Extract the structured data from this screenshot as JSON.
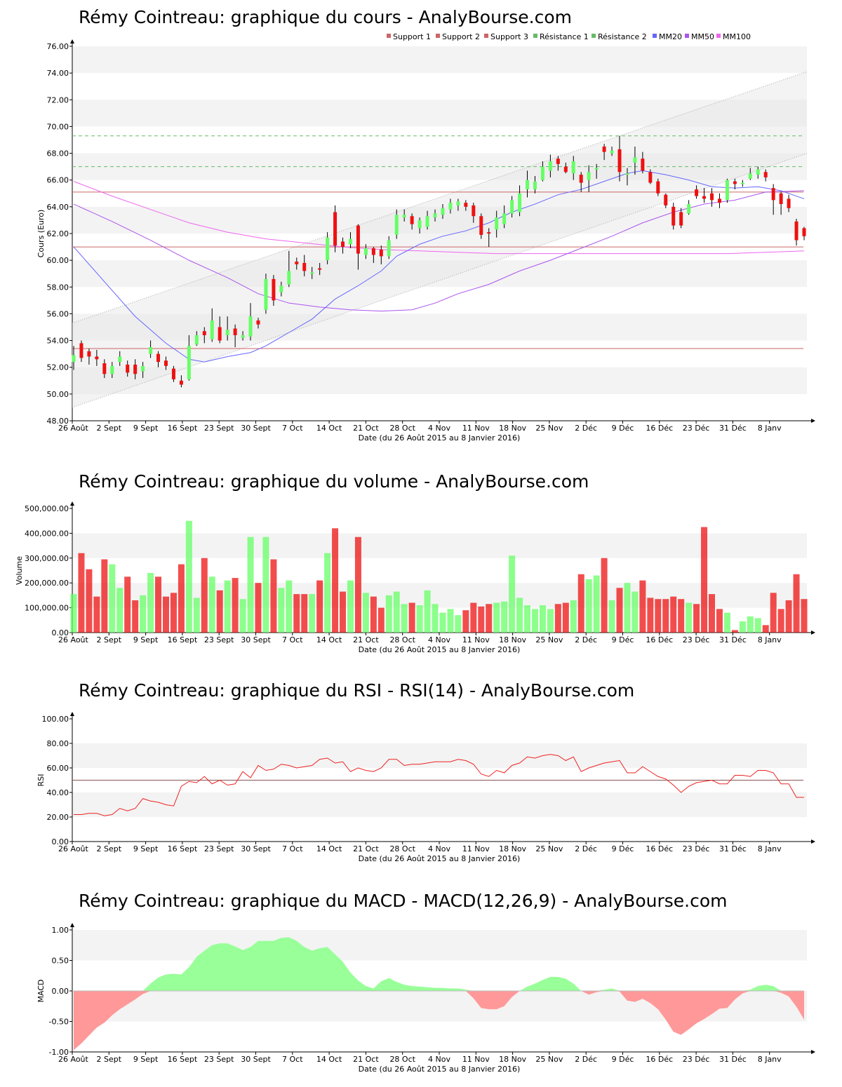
{
  "colors": {
    "up": "#66ff66",
    "down": "#ee1111",
    "support": "#cc6666",
    "resistance": "#66bb66",
    "mm20": "#6666ff",
    "mm50": "#aa55ee",
    "mm100": "#ee66ee",
    "rsi_line": "#ee2222",
    "macd_pos": "#99ff99",
    "macd_neg": "#ff9999",
    "band_fill": "#e8e8e8",
    "grid_alt": "#f3f3f3"
  },
  "x_axis": {
    "labels": [
      "26 Août",
      "2 Sept",
      "9 Sept",
      "16 Sept",
      "23 Sept",
      "30 Sept",
      "7 Oct",
      "14 Oct",
      "21 Oct",
      "28 Oct",
      "4 Nov",
      "11 Nov",
      "18 Nov",
      "25 Nov",
      "2 Déc",
      "9 Déc",
      "16 Déc",
      "23 Déc",
      "31 Déc",
      "8 Janv"
    ],
    "title": "Date (du 26 Août 2015 au 8 Janvier 2016)"
  },
  "chart_data": [
    {
      "type": "candlestick",
      "title": "Rémy Cointreau: graphique du cours - AnalyBourse.com",
      "ylabel": "Cours (Euro)",
      "ylim": [
        48,
        76
      ],
      "yticks": [
        "48.00",
        "50.00",
        "52.00",
        "54.00",
        "56.00",
        "58.00",
        "60.00",
        "62.00",
        "64.00",
        "66.00",
        "68.00",
        "70.00",
        "72.00",
        "74.00",
        "76.00"
      ],
      "legend": [
        "Support 1",
        "Support 2",
        "Support 3",
        "Résistance 1",
        "Résistance 2",
        "MM20",
        "MM50",
        "MM100"
      ],
      "legend_placement": "top-right",
      "supports": [
        65.1,
        61.0,
        53.4
      ],
      "resistances": [
        69.3,
        67.0
      ],
      "trend_channel": {
        "upper": [
          55.3,
          74.1
        ],
        "lower": [
          49.0,
          68.0
        ]
      },
      "candles": [
        [
          52.4,
          52.9,
          53.6,
          51.8
        ],
        [
          53.8,
          52.7,
          54.0,
          52.4
        ],
        [
          53.2,
          52.8,
          53.4,
          52.2
        ],
        [
          52.8,
          52.6,
          53.3,
          52.1
        ],
        [
          52.3,
          51.5,
          52.6,
          51.2
        ],
        [
          51.5,
          52.1,
          52.4,
          51.2
        ],
        [
          52.4,
          52.8,
          53.2,
          52.1
        ],
        [
          52.2,
          51.6,
          52.5,
          51.3
        ],
        [
          52.2,
          51.5,
          52.6,
          51.1
        ],
        [
          51.7,
          52.1,
          52.4,
          51.2
        ],
        [
          53.0,
          53.5,
          54.0,
          52.7
        ],
        [
          53.0,
          52.4,
          53.2,
          52.0
        ],
        [
          52.5,
          52.1,
          52.8,
          51.8
        ],
        [
          51.9,
          51.1,
          52.1,
          50.9
        ],
        [
          51.0,
          50.7,
          51.4,
          50.5
        ],
        [
          51.1,
          53.6,
          54.4,
          51.0
        ],
        [
          53.7,
          54.4,
          54.7,
          53.6
        ],
        [
          54.7,
          54.4,
          55.0,
          53.8
        ],
        [
          54.1,
          55.5,
          56.4,
          53.9
        ],
        [
          55.0,
          54.0,
          55.8,
          53.8
        ],
        [
          54.4,
          54.8,
          55.8,
          54.0
        ],
        [
          54.9,
          54.4,
          55.2,
          53.5
        ],
        [
          54.2,
          54.4,
          54.7,
          54.0
        ],
        [
          54.3,
          55.8,
          56.8,
          54.0
        ],
        [
          55.5,
          55.2,
          55.7,
          54.9
        ],
        [
          56.3,
          58.6,
          59.0,
          56.0
        ],
        [
          58.6,
          57.0,
          58.9,
          56.6
        ],
        [
          57.6,
          58.1,
          58.4,
          57.3
        ],
        [
          58.2,
          59.2,
          60.7,
          58.0
        ],
        [
          59.9,
          59.7,
          60.2,
          59.3
        ],
        [
          59.8,
          59.2,
          60.4,
          58.8
        ],
        [
          59.0,
          59.1,
          59.5,
          58.6
        ],
        [
          59.4,
          59.3,
          59.8,
          58.9
        ],
        [
          60.0,
          61.7,
          62.1,
          59.7
        ],
        [
          63.6,
          61.1,
          64.1,
          60.6
        ],
        [
          61.4,
          61.0,
          61.7,
          60.5
        ],
        [
          61.2,
          61.6,
          62.1,
          60.9
        ],
        [
          62.6,
          60.5,
          62.7,
          59.3
        ],
        [
          60.4,
          60.9,
          61.2,
          60.1
        ],
        [
          60.9,
          60.4,
          61.0,
          59.8
        ],
        [
          60.8,
          60.3,
          61.1,
          59.7
        ],
        [
          60.3,
          61.5,
          61.8,
          60.1
        ],
        [
          61.9,
          63.4,
          63.8,
          61.6
        ],
        [
          63.2,
          63.4,
          63.8,
          62.9
        ],
        [
          63.3,
          62.7,
          63.5,
          62.3
        ],
        [
          62.4,
          63.0,
          63.2,
          62.0
        ],
        [
          62.5,
          63.3,
          63.7,
          62.3
        ],
        [
          63.2,
          63.5,
          63.8,
          62.9
        ],
        [
          63.4,
          63.9,
          64.2,
          63.1
        ],
        [
          63.8,
          64.3,
          64.6,
          63.5
        ],
        [
          64.1,
          64.4,
          64.6,
          63.7
        ],
        [
          64.3,
          64.0,
          64.5,
          63.7
        ],
        [
          64.1,
          63.3,
          64.3,
          62.8
        ],
        [
          63.3,
          61.9,
          63.5,
          61.6
        ],
        [
          62.1,
          62.0,
          62.4,
          61.0
        ],
        [
          62.3,
          63.2,
          63.7,
          61.7
        ],
        [
          62.7,
          63.5,
          64.1,
          62.4
        ],
        [
          63.5,
          64.5,
          64.8,
          63.2
        ],
        [
          63.6,
          65.0,
          65.6,
          63.3
        ],
        [
          65.3,
          66.0,
          66.7,
          64.7
        ],
        [
          65.3,
          65.9,
          66.3,
          65.0
        ],
        [
          66.0,
          67.0,
          67.4,
          65.9
        ],
        [
          66.7,
          67.4,
          67.9,
          66.2
        ],
        [
          67.6,
          67.2,
          67.8,
          66.7
        ],
        [
          67.0,
          66.6,
          67.3,
          66.5
        ],
        [
          66.5,
          67.4,
          67.8,
          66.0
        ],
        [
          66.4,
          65.8,
          66.6,
          65.1
        ],
        [
          66.0,
          66.6,
          67.1,
          65.1
        ],
        [
          66.8,
          66.9,
          67.2,
          66.1
        ],
        [
          68.5,
          68.1,
          68.7,
          67.5
        ],
        [
          68.0,
          68.2,
          68.5,
          67.8
        ],
        [
          68.3,
          66.6,
          69.3,
          65.9
        ],
        [
          66.4,
          66.5,
          66.9,
          65.6
        ],
        [
          67.3,
          67.7,
          68.5,
          66.4
        ],
        [
          67.6,
          66.7,
          68.1,
          66.5
        ],
        [
          66.6,
          65.8,
          66.8,
          65.7
        ],
        [
          65.9,
          65.0,
          66.1,
          64.8
        ],
        [
          64.9,
          64.1,
          65.0,
          63.9
        ],
        [
          64.0,
          62.6,
          64.3,
          62.3
        ],
        [
          63.6,
          62.6,
          63.9,
          62.4
        ],
        [
          63.5,
          64.2,
          64.5,
          63.4
        ],
        [
          65.3,
          64.8,
          65.6,
          64.6
        ],
        [
          64.8,
          64.6,
          65.4,
          64.3
        ],
        [
          65.0,
          64.5,
          65.4,
          64.0
        ],
        [
          64.6,
          64.3,
          65.0,
          63.9
        ],
        [
          64.5,
          66.0,
          66.1,
          64.3
        ],
        [
          65.9,
          65.7,
          66.1,
          65.3
        ],
        [
          65.8,
          65.8,
          66.0,
          65.5
        ],
        [
          66.1,
          66.5,
          66.9,
          66.0
        ],
        [
          66.4,
          66.8,
          67.0,
          66.1
        ],
        [
          66.6,
          66.2,
          66.8,
          65.9
        ],
        [
          65.4,
          64.5,
          65.7,
          63.4
        ],
        [
          65.0,
          64.2,
          65.1,
          63.4
        ],
        [
          64.6,
          63.9,
          64.9,
          63.6
        ],
        [
          62.9,
          61.5,
          63.1,
          61.1
        ],
        [
          62.4,
          61.8,
          62.5,
          61.5
        ]
      ],
      "mm20": [
        [
          0,
          61.0
        ],
        [
          4,
          58.4
        ],
        [
          8,
          55.8
        ],
        [
          12,
          53.8
        ],
        [
          15,
          52.6
        ],
        [
          17,
          52.4
        ],
        [
          20,
          52.8
        ],
        [
          23,
          53.1
        ],
        [
          25,
          53.6
        ],
        [
          28,
          54.6
        ],
        [
          31,
          55.6
        ],
        [
          34,
          57.1
        ],
        [
          37,
          58.1
        ],
        [
          40,
          59.2
        ],
        [
          42,
          60.3
        ],
        [
          45,
          61.2
        ],
        [
          48,
          61.8
        ],
        [
          51,
          62.2
        ],
        [
          54,
          62.8
        ],
        [
          57,
          63.6
        ],
        [
          60,
          64.2
        ],
        [
          63,
          64.9
        ],
        [
          66,
          65.3
        ],
        [
          69,
          65.9
        ],
        [
          72,
          66.5
        ],
        [
          74,
          66.7
        ],
        [
          77,
          66.4
        ],
        [
          80,
          66.0
        ],
        [
          83,
          65.5
        ],
        [
          86,
          65.4
        ],
        [
          89,
          65.5
        ],
        [
          92,
          65.2
        ],
        [
          95,
          64.6
        ]
      ],
      "mm50": [
        [
          0,
          64.2
        ],
        [
          5,
          62.9
        ],
        [
          10,
          61.5
        ],
        [
          15,
          60.0
        ],
        [
          20,
          58.7
        ],
        [
          24,
          57.5
        ],
        [
          28,
          56.8
        ],
        [
          32,
          56.5
        ],
        [
          36,
          56.3
        ],
        [
          40,
          56.2
        ],
        [
          44,
          56.3
        ],
        [
          47,
          56.8
        ],
        [
          50,
          57.5
        ],
        [
          54,
          58.2
        ],
        [
          58,
          59.2
        ],
        [
          62,
          60.0
        ],
        [
          66,
          60.9
        ],
        [
          70,
          61.8
        ],
        [
          74,
          62.8
        ],
        [
          78,
          63.6
        ],
        [
          82,
          64.2
        ],
        [
          86,
          64.5
        ],
        [
          90,
          65.1
        ],
        [
          95,
          65.2
        ]
      ],
      "mm100": [
        [
          0,
          65.9
        ],
        [
          5,
          64.8
        ],
        [
          10,
          63.8
        ],
        [
          15,
          62.8
        ],
        [
          20,
          62.1
        ],
        [
          25,
          61.6
        ],
        [
          30,
          61.3
        ],
        [
          35,
          61.0
        ],
        [
          40,
          60.8
        ],
        [
          45,
          60.7
        ],
        [
          50,
          60.6
        ],
        [
          55,
          60.5
        ],
        [
          60,
          60.5
        ],
        [
          65,
          60.5
        ],
        [
          70,
          60.5
        ],
        [
          75,
          60.5
        ],
        [
          80,
          60.5
        ],
        [
          85,
          60.5
        ],
        [
          90,
          60.6
        ],
        [
          95,
          60.7
        ]
      ]
    },
    {
      "type": "bar",
      "title": "Rémy Cointreau: graphique du volume - AnalyBourse.com",
      "ylabel": "Volume",
      "ylim": [
        0,
        500000
      ],
      "yticks": [
        "0.00",
        "100,000.00",
        "200,000.00",
        "300,000.00",
        "400,000.00",
        "500,000.00"
      ],
      "values": [
        155000,
        320000,
        255000,
        145000,
        295000,
        275000,
        180000,
        225000,
        130000,
        150000,
        240000,
        225000,
        145000,
        160000,
        275000,
        450000,
        140000,
        300000,
        225000,
        170000,
        210000,
        220000,
        135000,
        385000,
        200000,
        385000,
        295000,
        180000,
        210000,
        155000,
        155000,
        155000,
        210000,
        320000,
        420000,
        165000,
        210000,
        385000,
        160000,
        145000,
        100000,
        150000,
        165000,
        115000,
        120000,
        110000,
        170000,
        115000,
        80000,
        95000,
        70000,
        90000,
        120000,
        105000,
        115000,
        120000,
        125000,
        310000,
        140000,
        110000,
        95000,
        110000,
        95000,
        115000,
        120000,
        130000,
        235000,
        215000,
        230000,
        300000,
        130000,
        180000,
        200000,
        165000,
        210000,
        140000,
        135000,
        135000,
        145000,
        135000,
        120000,
        115000,
        425000,
        155000,
        95000,
        80000,
        10000,
        45000,
        65000,
        58000,
        30000,
        160000,
        95000,
        130000,
        235000,
        135000
      ]
    },
    {
      "type": "line",
      "title": "Rémy Cointreau: graphique du RSI - RSI(14) - AnalyBourse.com",
      "ylabel": "RSI",
      "ylim": [
        0,
        100
      ],
      "yticks": [
        "0.00",
        "20.00",
        "40.00",
        "60.00",
        "80.00",
        "100.00"
      ],
      "reference": 50,
      "values": [
        22,
        22,
        23,
        23,
        21,
        22,
        27,
        25,
        27,
        35,
        33,
        32,
        30,
        29,
        45,
        49,
        48,
        53,
        47,
        50,
        46,
        47,
        57,
        52,
        62,
        58,
        59,
        63,
        62,
        60,
        61,
        62,
        67,
        68,
        64,
        65,
        57,
        60,
        58,
        57,
        60,
        67,
        67,
        62,
        63,
        63,
        64,
        65,
        65,
        65,
        67,
        66,
        63,
        55,
        53,
        58,
        56,
        62,
        64,
        69,
        68,
        70,
        71,
        70,
        66,
        69,
        57,
        60,
        62,
        64,
        65,
        66,
        56,
        56,
        61,
        57,
        53,
        51,
        46,
        40,
        45,
        48,
        49,
        50,
        47,
        47,
        54,
        54,
        53,
        58,
        58,
        56,
        47,
        47,
        36,
        36
      ]
    },
    {
      "type": "area",
      "title": "Rémy Cointreau: graphique du MACD - MACD(12,26,9) - AnalyBourse.com",
      "ylabel": "MACD",
      "ylim": [
        -1,
        1
      ],
      "yticks": [
        "-1.00",
        "-0.50",
        "0.00",
        "0.50",
        "1.00"
      ],
      "values": [
        -0.97,
        -0.86,
        -0.73,
        -0.6,
        -0.52,
        -0.4,
        -0.3,
        -0.22,
        -0.14,
        -0.05,
        0.12,
        0.22,
        0.27,
        0.28,
        0.27,
        0.39,
        0.56,
        0.66,
        0.75,
        0.78,
        0.78,
        0.73,
        0.67,
        0.72,
        0.82,
        0.82,
        0.82,
        0.87,
        0.88,
        0.82,
        0.72,
        0.66,
        0.7,
        0.72,
        0.6,
        0.48,
        0.3,
        0.17,
        0.08,
        0.04,
        0.16,
        0.21,
        0.15,
        0.1,
        0.08,
        0.07,
        0.06,
        0.05,
        0.05,
        0.04,
        0.04,
        0.02,
        -0.12,
        -0.28,
        -0.3,
        -0.3,
        -0.25,
        -0.1,
        0.0,
        0.07,
        0.12,
        0.18,
        0.23,
        0.23,
        0.2,
        0.12,
        0.0,
        -0.06,
        -0.02,
        0.02,
        0.04,
        -0.01,
        -0.16,
        -0.18,
        -0.13,
        -0.2,
        -0.3,
        -0.47,
        -0.67,
        -0.72,
        -0.63,
        -0.53,
        -0.46,
        -0.38,
        -0.29,
        -0.28,
        -0.14,
        -0.04,
        0.02,
        0.08,
        0.1,
        0.08,
        -0.03,
        -0.09,
        -0.26,
        -0.47
      ]
    }
  ]
}
